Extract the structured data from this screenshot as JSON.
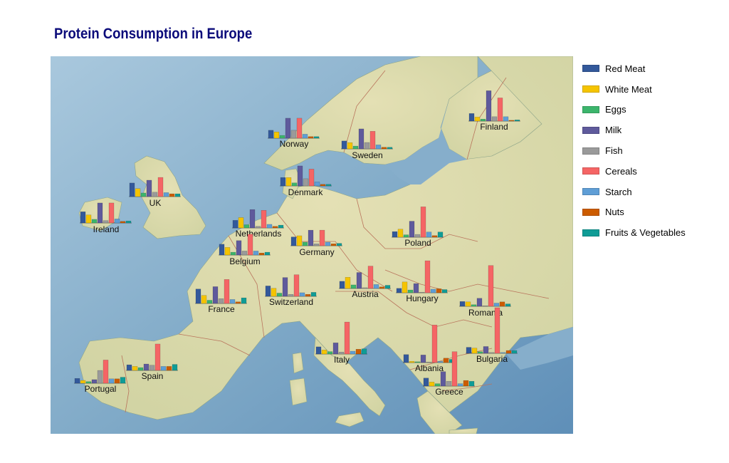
{
  "title": "Protein Consumption in Europe",
  "legend": [
    {
      "name": "Red Meat",
      "color": "#33599b"
    },
    {
      "name": "White Meat",
      "color": "#f5c400"
    },
    {
      "name": "Eggs",
      "color": "#3cb56c"
    },
    {
      "name": "Milk",
      "color": "#5f5a9c"
    },
    {
      "name": "Fish",
      "color": "#9a9a9a"
    },
    {
      "name": "Cereals",
      "color": "#f56565"
    },
    {
      "name": "Starch",
      "color": "#5f9ed6"
    },
    {
      "name": "Nuts",
      "color": "#cc5c00"
    },
    {
      "name": "Fruits & Vegetables",
      "color": "#0f9c96"
    }
  ],
  "chart_data": {
    "type": "bar",
    "categories": [
      "Red Meat",
      "White Meat",
      "Eggs",
      "Milk",
      "Fish",
      "Cereals",
      "Starch",
      "Nuts",
      "Fruits & Vegetables"
    ],
    "countries": [
      {
        "name": "Norway",
        "values": [
          9.9,
          7.8,
          3.5,
          25.0,
          9.9,
          25.0,
          5.0,
          2.0,
          2.0
        ]
      },
      {
        "name": "Sweden",
        "values": [
          9.9,
          7.8,
          3.5,
          25.0,
          8.0,
          22.0,
          5.0,
          2.0,
          2.0
        ]
      },
      {
        "name": "Finland",
        "values": [
          9.5,
          5.0,
          2.5,
          38.0,
          5.5,
          29.0,
          5.5,
          1.0,
          1.5
        ]
      },
      {
        "name": "Denmark",
        "values": [
          10.5,
          10.5,
          3.8,
          25.0,
          9.0,
          21.0,
          5.0,
          2.0,
          2.0
        ]
      },
      {
        "name": "UK",
        "values": [
          17.0,
          10.0,
          4.5,
          20.5,
          5.5,
          24.0,
          5.0,
          3.5,
          3.5
        ]
      },
      {
        "name": "Ireland",
        "values": [
          14.0,
          10.0,
          4.5,
          25.0,
          3.0,
          25.0,
          5.0,
          2.0,
          2.5
        ]
      },
      {
        "name": "Netherlands",
        "values": [
          9.5,
          13.0,
          4.0,
          23.0,
          2.0,
          22.0,
          4.5,
          2.0,
          3.5
        ]
      },
      {
        "name": "Germany",
        "values": [
          11.0,
          12.5,
          4.5,
          19.5,
          2.5,
          19.5,
          4.5,
          2.5,
          3.0
        ]
      },
      {
        "name": "Belgium",
        "values": [
          13.5,
          9.5,
          3.5,
          18.0,
          5.0,
          26.0,
          5.0,
          2.5,
          3.5
        ]
      },
      {
        "name": "Poland",
        "values": [
          7.0,
          10.0,
          3.0,
          20.0,
          3.5,
          38.0,
          6.5,
          2.0,
          6.5
        ]
      },
      {
        "name": "France",
        "values": [
          18.0,
          10.0,
          4.0,
          21.0,
          6.0,
          30.0,
          5.0,
          2.0,
          7.0
        ]
      },
      {
        "name": "Switzerland",
        "values": [
          13.0,
          10.0,
          4.0,
          23.5,
          2.5,
          27.0,
          4.5,
          2.5,
          5.0
        ]
      },
      {
        "name": "Austria",
        "values": [
          9.0,
          14.0,
          4.5,
          20.0,
          1.0,
          28.0,
          5.0,
          2.0,
          4.0
        ]
      },
      {
        "name": "Hungary",
        "values": [
          5.5,
          13.5,
          3.5,
          11.5,
          0.5,
          40.0,
          4.5,
          5.0,
          4.0
        ]
      },
      {
        "name": "Romania",
        "values": [
          6.0,
          5.5,
          2.0,
          10.0,
          0.5,
          51.0,
          4.0,
          5.5,
          3.0
        ]
      },
      {
        "name": "Italy",
        "values": [
          9.0,
          5.0,
          3.0,
          14.0,
          2.5,
          40.0,
          3.5,
          6.0,
          6.5
        ]
      },
      {
        "name": "Spain",
        "values": [
          7.0,
          5.0,
          3.5,
          8.0,
          6.5,
          33.0,
          5.0,
          5.0,
          7.5
        ]
      },
      {
        "name": "Portugal",
        "values": [
          6.0,
          3.5,
          2.0,
          4.5,
          16.0,
          29.0,
          5.5,
          5.5,
          7.5
        ]
      },
      {
        "name": "Albania",
        "values": [
          10.0,
          1.5,
          1.0,
          9.5,
          0.5,
          47.0,
          1.5,
          5.5,
          4.0
        ]
      },
      {
        "name": "Bulgaria",
        "values": [
          7.5,
          6.5,
          2.0,
          8.5,
          1.0,
          57.0,
          1.0,
          3.5,
          3.5
        ]
      },
      {
        "name": "Greece",
        "values": [
          10.0,
          5.0,
          3.0,
          18.0,
          6.0,
          43.0,
          3.0,
          7.0,
          6.0
        ]
      }
    ]
  }
}
